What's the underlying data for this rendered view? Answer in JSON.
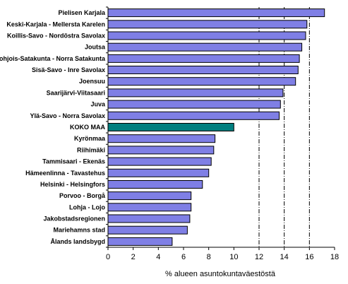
{
  "chart_data": {
    "type": "bar",
    "orientation": "horizontal",
    "categories": [
      "Pielisen Karjala",
      "Keski-Karjala - Mellersta Karelen",
      "Koillis-Savo - Nordöstra Savolax",
      "Joutsa",
      "Pohjois-Satakunta - Norra Satakunta",
      "Sisä-Savo - Inre Savolax",
      "Joensuu",
      "Saarijärvi-Viitasaari",
      "Juva",
      "Ylä-Savo - Norra Savolax",
      "KOKO MAA",
      "Kyrönmaa",
      "Riihimäki",
      "Tammisaari - Ekenäs",
      "Hämeenlinna - Tavastehus",
      "Helsinki - Helsingfors",
      "Porvoo - Borgå",
      "Lohja - Lojo",
      "Jakobstadsregionen",
      "Mariehamns stad",
      "Ålands landsbygd"
    ],
    "values": [
      17.2,
      15.8,
      15.7,
      15.4,
      15.2,
      15.1,
      14.9,
      13.9,
      13.7,
      13.6,
      10.0,
      8.5,
      8.4,
      8.2,
      8.0,
      7.5,
      6.6,
      6.6,
      6.5,
      6.3,
      5.1
    ],
    "highlight_category": "KOKO MAA",
    "colors": {
      "bar": "#7f7fe5",
      "highlight": "#007f7f",
      "border": "#000000"
    },
    "xlabel": "% alueen asuntokuntaväestöstä",
    "xlim": [
      0,
      18
    ],
    "xticks": [
      "0",
      "2",
      "4",
      "6",
      "8",
      "10",
      "12",
      "14",
      "16",
      "18"
    ],
    "grid": "vertical dash-dot lines at 12, 14, 16"
  }
}
